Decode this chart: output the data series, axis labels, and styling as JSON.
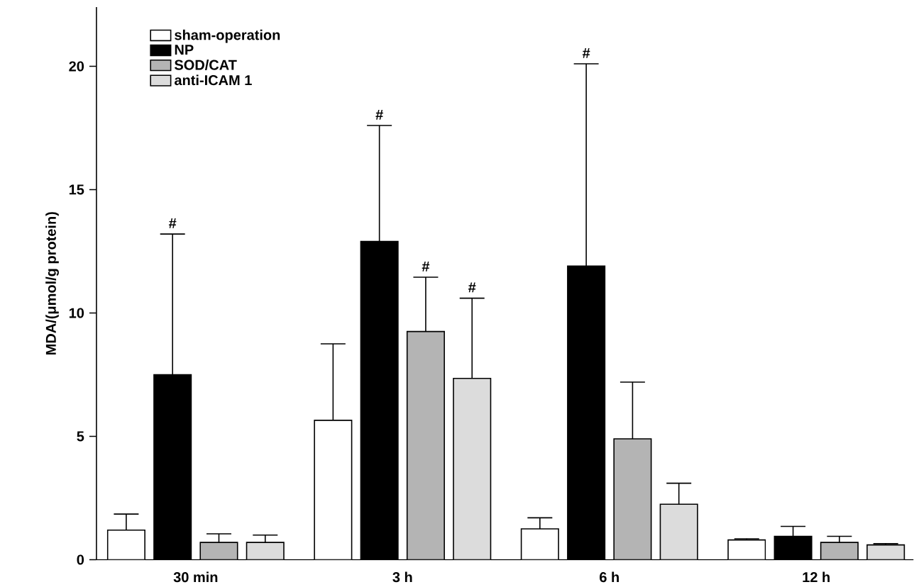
{
  "chart_data": {
    "type": "bar",
    "ylabel": "MDA/(μmol/g protein)",
    "categories": [
      "30 min",
      "3 h",
      "6 h",
      "12 h"
    ],
    "series": [
      {
        "name": "sham-operation",
        "color": "#ffffff",
        "values": [
          1.2,
          5.65,
          1.25,
          0.8
        ],
        "errors": [
          [
            1.2,
            1.85
          ],
          [
            5.65,
            8.75
          ],
          [
            1.25,
            1.7
          ],
          [
            0.8,
            0.85
          ]
        ]
      },
      {
        "name": "NP",
        "color": "#000000",
        "values": [
          7.5,
          12.9,
          11.9,
          0.95
        ],
        "errors": [
          [
            7.5,
            13.2
          ],
          [
            12.9,
            17.6
          ],
          [
            11.9,
            20.1
          ],
          [
            0.95,
            1.35
          ]
        ]
      },
      {
        "name": "SOD/CAT",
        "color": "#b4b4b4",
        "values": [
          0.7,
          9.25,
          4.9,
          0.7
        ],
        "errors": [
          [
            0.7,
            1.05
          ],
          [
            9.25,
            11.45
          ],
          [
            4.9,
            7.2
          ],
          [
            0.7,
            0.95
          ]
        ]
      },
      {
        "name": "anti-ICAM 1",
        "color": "#dcdcdc",
        "values": [
          0.7,
          7.35,
          2.25,
          0.6
        ],
        "errors": [
          [
            0.7,
            1.0
          ],
          [
            7.35,
            10.6
          ],
          [
            2.25,
            3.1
          ],
          [
            0.6,
            0.65
          ]
        ]
      }
    ],
    "annotations": [
      "#",
      "#",
      "#",
      "#",
      "#"
    ],
    "ylim": [
      0,
      22.4
    ],
    "yticks": [
      0,
      5,
      10,
      15,
      20
    ],
    "legend": "top left"
  }
}
